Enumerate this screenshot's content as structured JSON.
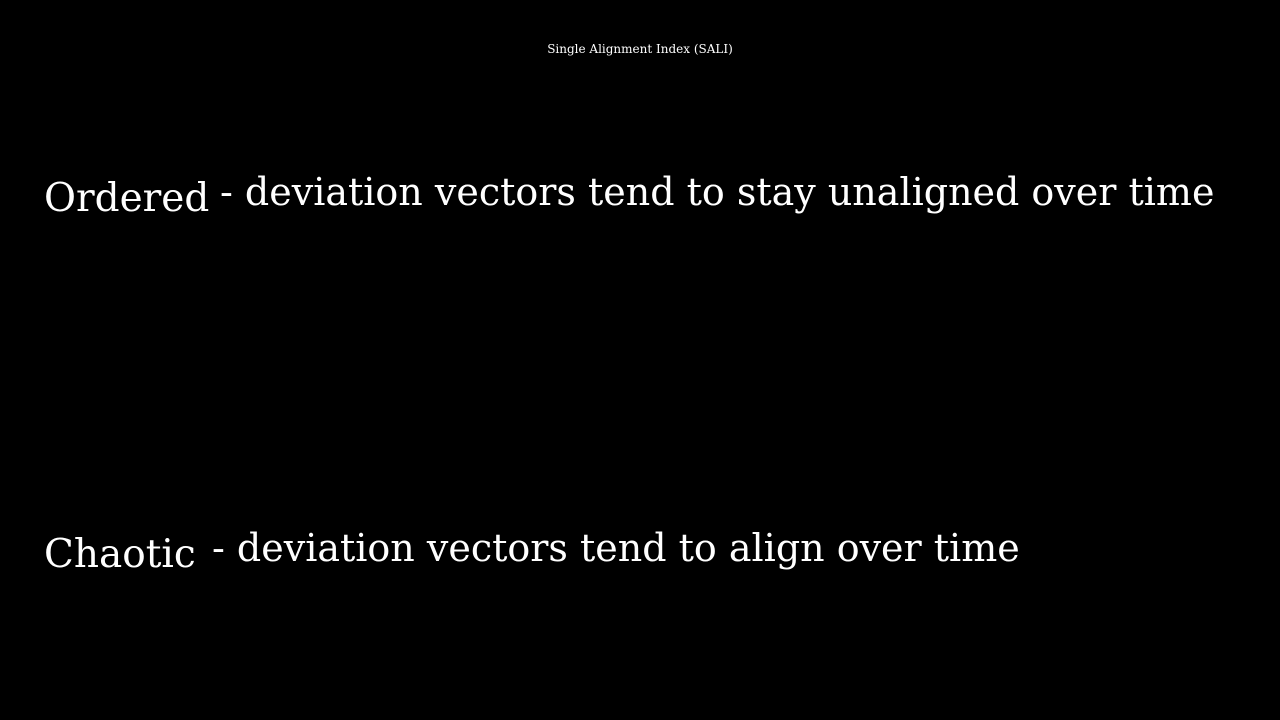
{
  "title": "Single Alignment Index (SALI)",
  "colors": {
    "background": "#000000",
    "text": "#ffffff"
  },
  "items": [
    {
      "term": "Ordered",
      "description": "- deviation vectors tend to stay unaligned over time"
    },
    {
      "term": "Chaotic",
      "description": "- deviation vectors tend to align over time"
    }
  ]
}
